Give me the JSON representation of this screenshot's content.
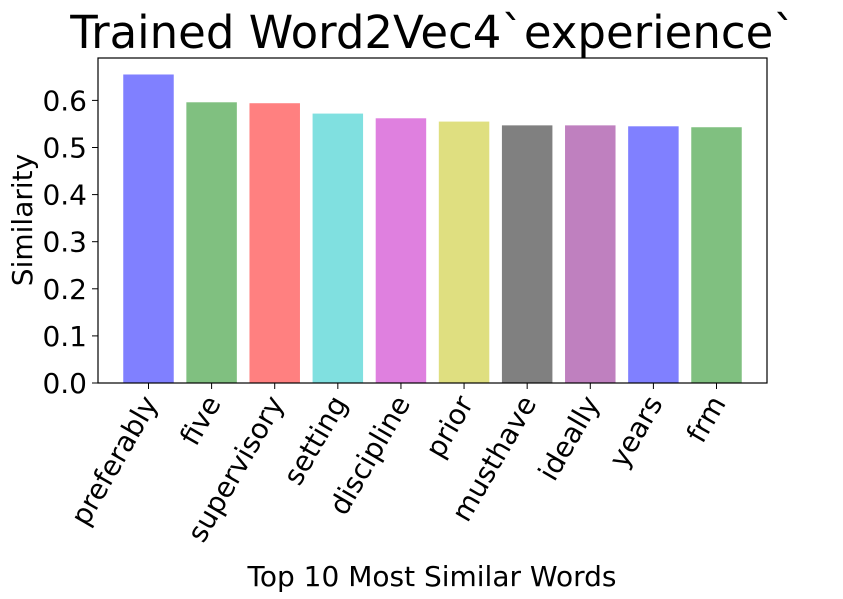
{
  "chart_data": {
    "type": "bar",
    "title": "Trained Word2Vec4`experience`",
    "xlabel": "Top 10 Most Similar Words",
    "ylabel": "Similarity",
    "categories": [
      "preferably",
      "five",
      "supervisory",
      "setting",
      "discipline",
      "prior",
      "musthave",
      "ideally",
      "years",
      "frm"
    ],
    "values": [
      0.655,
      0.596,
      0.594,
      0.572,
      0.562,
      0.555,
      0.547,
      0.547,
      0.545,
      0.543
    ],
    "colors": [
      "#8080ff",
      "#80c080",
      "#ff8080",
      "#80e0e0",
      "#df80df",
      "#dfdf80",
      "#808080",
      "#bf80bf",
      "#8080ff",
      "#80c080"
    ],
    "ylim": [
      0,
      0.69
    ],
    "yticks": [
      0.0,
      0.1,
      0.2,
      0.3,
      0.4,
      0.5,
      0.6
    ],
    "ytick_labels": [
      "0.0",
      "0.1",
      "0.2",
      "0.3",
      "0.4",
      "0.5",
      "0.6"
    ],
    "grid": false,
    "legend": "none"
  }
}
